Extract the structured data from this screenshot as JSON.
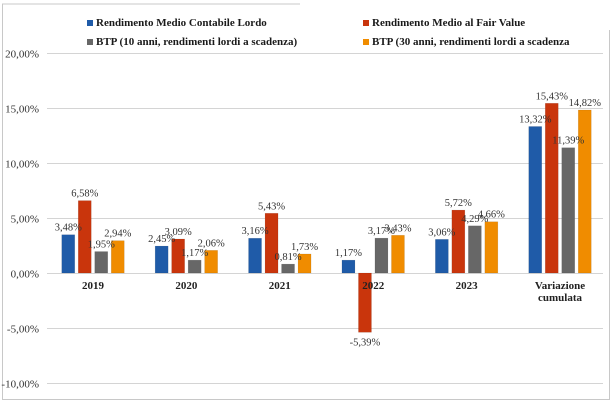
{
  "chart_data": {
    "type": "bar",
    "title": "",
    "xlabel": "",
    "ylabel": "",
    "ylim": [
      -10,
      20
    ],
    "yticks": [
      20,
      15,
      10,
      5,
      0,
      -5,
      -10
    ],
    "ytick_labels": [
      "20,00%",
      "15,00%",
      "10,00%",
      "5,00%",
      "0,00%",
      "-5,00%",
      "-10,00%"
    ],
    "grid": true,
    "legend_position": "top",
    "categories": [
      "2019",
      "2020",
      "2021",
      "2022",
      "2023",
      "Variazione cumulata"
    ],
    "category_lines": [
      [
        "2019"
      ],
      [
        "2020"
      ],
      [
        "2021"
      ],
      [
        "2022"
      ],
      [
        "2023"
      ],
      [
        "Variazione",
        "cumulata"
      ]
    ],
    "series": [
      {
        "name": "Rendimento Medio Contabile Lordo",
        "color": "#1f5ba8",
        "values": [
          3.48,
          2.45,
          3.16,
          1.17,
          3.06,
          13.32
        ],
        "labels": [
          "3,48%",
          "2,45%",
          "3,16%",
          "1,17%",
          "3,06%",
          "13,32%"
        ]
      },
      {
        "name": "Rendimento Medio al Fair Value",
        "color": "#c9350c",
        "values": [
          6.58,
          3.09,
          5.43,
          -5.39,
          5.72,
          15.43
        ],
        "labels": [
          "6,58%",
          "3,09%",
          "5,43%",
          "-5,39%",
          "5,72%",
          "15,43%"
        ]
      },
      {
        "name": "BTP (10 anni, rendimenti lordi a scadenza)",
        "color": "#676767",
        "values": [
          1.95,
          1.17,
          0.81,
          3.17,
          4.29,
          11.39
        ],
        "labels": [
          "1,95%",
          "1,17%",
          "0,81%",
          "3,17%",
          "4,29%",
          "11,39%"
        ]
      },
      {
        "name": "BTP (30 anni, rendimenti lordi a scadenza",
        "color": "#f08c00",
        "values": [
          2.94,
          2.06,
          1.73,
          3.43,
          4.66,
          14.82
        ],
        "labels": [
          "2,94%",
          "2,06%",
          "1,73%",
          "3,43%",
          "4,66%",
          "14,82%"
        ]
      }
    ]
  }
}
